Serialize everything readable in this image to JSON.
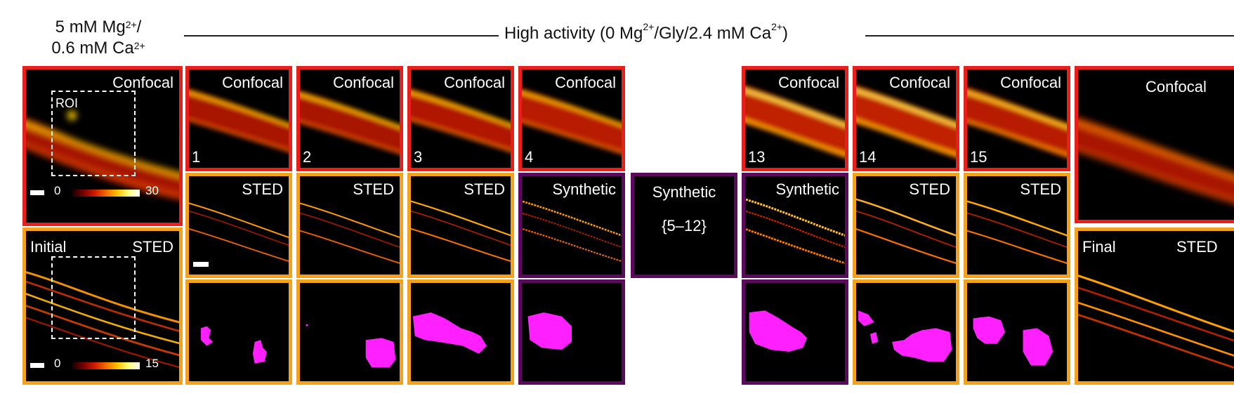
{
  "header": {
    "left_line1": "5 mM Mg",
    "left_sup1": "2+",
    "left_slash": "/",
    "left_line2": "0.6 mM Ca",
    "left_sup2": "2+",
    "title_a": "High activity (0 Mg",
    "title_sup_a": "2+",
    "title_b": "/Gly/2.4 mM Ca",
    "title_sup_b": "2+",
    "title_c": ")"
  },
  "labels": {
    "confocal": "Confocal",
    "sted": "STED",
    "synthetic": "Synthetic",
    "initial": "Initial",
    "final": "Final",
    "roi": "ROI",
    "range": "{5–12}"
  },
  "steps": [
    "1",
    "2",
    "3",
    "4",
    "13",
    "14",
    "15"
  ],
  "colorbars": {
    "confocal": {
      "min": "0",
      "max": "30"
    },
    "sted": {
      "min": "0",
      "max": "15"
    }
  },
  "colors": {
    "confocal_frame": "#e8201b",
    "sted_frame": "#f2a21c",
    "synthetic_frame": "#5b0a5c",
    "mask": "#ff20ff"
  }
}
